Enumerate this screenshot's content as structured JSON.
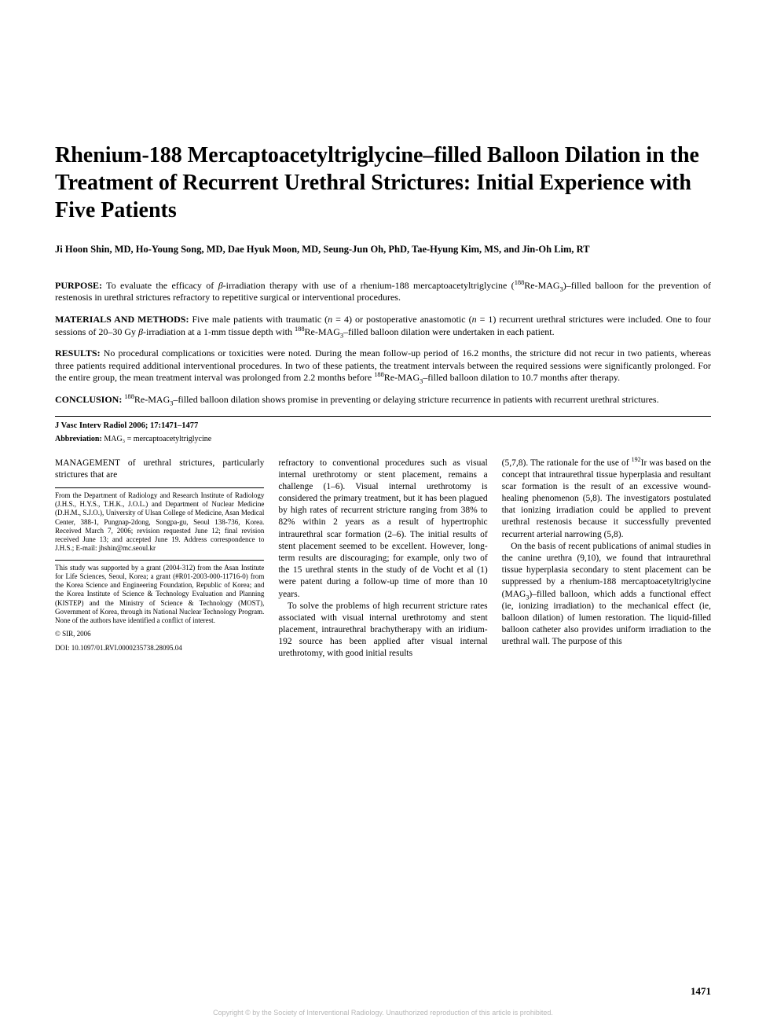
{
  "title": "Rhenium-188 Mercaptoacetyltriglycine–filled Balloon Dilation in the Treatment of Recurrent Urethral Strictures: Initial Experience with Five Patients",
  "authors": "Ji Hoon Shin, MD, Ho-Young Song, MD, Dae Hyuk Moon, MD, Seung-Jun Oh, PhD, Tae-Hyung Kim, MS, and Jin-Oh Lim, RT",
  "abstract": {
    "purpose": {
      "label": "PURPOSE:",
      "pre": " To evaluate the efficacy of ",
      "beta": "β",
      "mid": "-irradiation therapy with use of a rhenium-188 mercaptoacetyltriglycine (",
      "sup": "188",
      "re": "Re-MAG",
      "sub3": "3",
      "post": ")–filled balloon for the prevention of restenosis in urethral strictures refractory to repetitive surgical or interventional procedures."
    },
    "methods": {
      "label": "MATERIALS AND METHODS:",
      "pre": " Five male patients with traumatic (",
      "nital": "n",
      "neq4": " = 4) or postoperative anastomotic (",
      "neq1": " = 1) recurrent urethral strictures were included. One to four sessions of 20–30 Gy ",
      "beta": "β",
      "mid": "-irradiation at a 1-mm tissue depth with ",
      "sup": "188",
      "re": "Re-MAG",
      "sub3": "3",
      "post": "–filled balloon dilation were undertaken in each patient."
    },
    "results": {
      "label": "RESULTS:",
      "pre": " No procedural complications or toxicities were noted. During the mean follow-up period of 16.2 months, the stricture did not recur in two patients, whereas three patients required additional interventional procedures. In two of these patients, the treatment intervals between the required sessions were significantly prolonged. For the entire group, the mean treatment interval was prolonged from 2.2 months before ",
      "sup": "188",
      "re": "Re-MAG",
      "sub3": "3",
      "post": "–filled balloon dilation to 10.7 months after therapy."
    },
    "conclusion": {
      "label": "CONCLUSION:",
      "pre": " ",
      "sup": "188",
      "re": "Re-MAG",
      "sub3": "3",
      "post": "–filled balloon dilation shows promise in preventing or delaying stricture recurrence in patients with recurrent urethral strictures."
    }
  },
  "citation": "J Vasc Interv Radiol 2006; 17:1471–1477",
  "abbrev": {
    "label": "Abbreviation:",
    "text": "  MAG₃ = mercaptoacetyltriglycine"
  },
  "body": {
    "lead": "MANAGEMENT of urethral strictures, particularly strictures that are",
    "footnote1": "From the Department of Radiology and Research Institute of Radiology (J.H.S., H.Y.S., T.H.K., J.O.L.) and Department of Nuclear Medicine (D.H.M., S.J.O.), University of Ulsan College of Medicine, Asan Medical Center, 388-1, Pungnap-2dong, Songpa-gu, Seoul 138-736, Korea. Received March 7, 2006; revision requested June 12; final revision received June 13; and accepted June 19. Address correspondence to J.H.S.; E-mail: jhshin@mc.seoul.kr",
    "footnote2": "This study was supported by a grant (2004-312) from the Asan Institute for Life Sciences, Seoul, Korea; a grant (#R01-2003-000-11716-0) from the Korea Science and Engineering Foundation, Republic of Korea; and the Korea Institute of Science & Technology Evaluation and Planning (KISTEP) and the Ministry of Science & Technology (MOST), Government of Korea, through its National Nuclear Technology Program. None of the authors have identified a conflict of interest.",
    "footnote3": "© SIR, 2006",
    "footnote4": "DOI: 10.1097/01.RVI.0000235738.28095.04",
    "col2a": "refractory to conventional procedures such as visual internal urethrotomy or stent placement, remains a challenge (1–6). Visual internal urethrotomy is considered the primary treatment, but it has been plagued by high rates of recurrent stricture ranging from 38% to 82% within 2 years as a result of hypertrophic intraurethral scar formation (2–6). The initial results of stent placement seemed to be excellent. However, long-term results are discouraging; for example, only two of the 15 urethral stents in the study of de Vocht et al (1) were patent during a follow-up time of more than 10 years.",
    "col2b": "To solve the problems of high recurrent stricture rates associated with visual internal urethrotomy and stent placement, intraurethral brachytherapy with an iridium-192 source has been applied after visual internal urethrotomy, with good initial results",
    "col3a_pre": "(5,7,8). The rationale for the use of ",
    "col3a_sup": "192",
    "col3a_post": "Ir was based on the concept that intraurethral tissue hyperplasia and resultant scar formation is the result of an excessive wound-healing phenomenon (5,8). The investigators postulated that ionizing irradiation could be applied to prevent urethral restenosis because it successfully prevented recurrent arterial narrowing (5,8).",
    "col3b_pre": "On the basis of recent publications of animal studies in the canine urethra (9,10), we found that intraurethral tissue hyperplasia secondary to stent placement can be suppressed by a rhenium-188 mercaptoacetyltriglycine (MAG",
    "col3b_sub": "3",
    "col3b_post": ")–filled balloon, which adds a functional effect (ie, ionizing irradiation) to the mechanical effect (ie, balloon dilation) of lumen restoration. The liquid-filled balloon catheter also provides uniform irradiation to the urethral wall. The purpose of this"
  },
  "page_number": "1471",
  "copyright": "Copyright © by the Society of Interventional Radiology. Unauthorized reproduction of this article is prohibited."
}
